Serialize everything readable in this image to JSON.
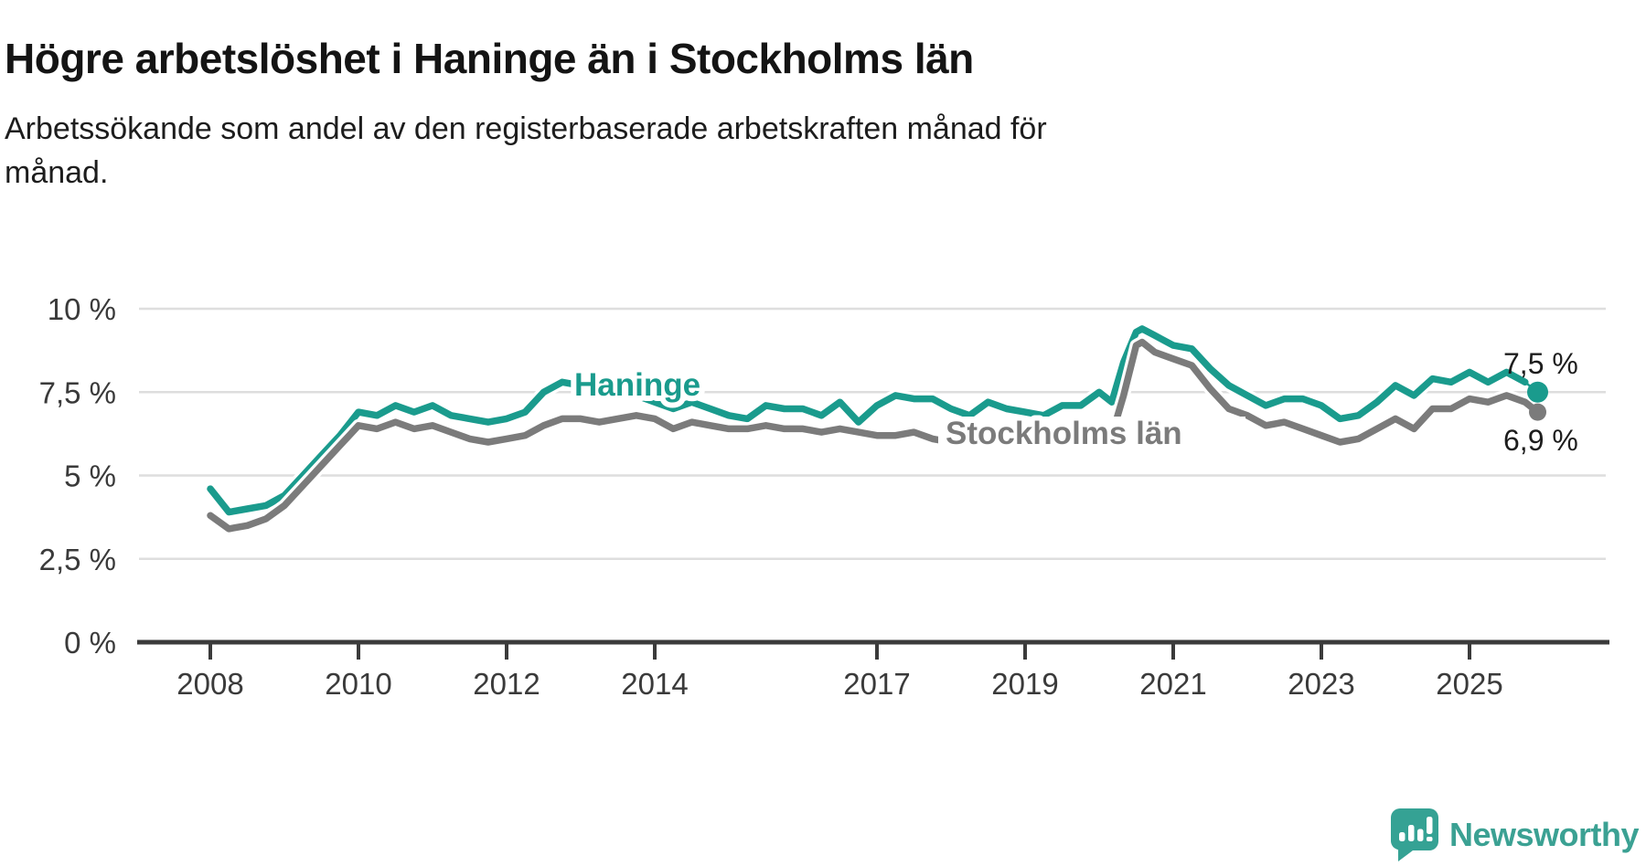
{
  "header": {
    "title": "Högre arbetslöshet i Haninge än i Stockholms län",
    "subtitle_line1": "Arbetssökande som andel av den registerbaserade arbetskraften månad för",
    "subtitle_line2": "månad."
  },
  "chart_data": {
    "type": "line",
    "title": "Högre arbetslöshet i Haninge än i Stockholms län",
    "subtitle": "Arbetssökande som andel av den registerbaserade arbetskraften månad för månad.",
    "unit": "%",
    "cadence": "monthly series 2008–2025, values read from chart at ~quarterly resolution",
    "grid": "horizontal gridlines only",
    "legend_position": "inline labels on lines",
    "x_axis": {
      "range_years": [
        2007.1,
        2026.9
      ],
      "ticks": [
        {
          "label": "2008",
          "value": 2008
        },
        {
          "label": "2010",
          "value": 2010
        },
        {
          "label": "2012",
          "value": 2012
        },
        {
          "label": "2014",
          "value": 2014
        },
        {
          "label": "2017",
          "value": 2017
        },
        {
          "label": "2019",
          "value": 2019
        },
        {
          "label": "2021",
          "value": 2021
        },
        {
          "label": "2023",
          "value": 2023
        },
        {
          "label": "2025",
          "value": 2025
        }
      ]
    },
    "y_axis": {
      "range": [
        0,
        10
      ],
      "ticks": [
        {
          "label": "0 %",
          "value": 0
        },
        {
          "label": "2,5 %",
          "value": 2.5
        },
        {
          "label": "5 %",
          "value": 5
        },
        {
          "label": "7,5 %",
          "value": 7.5
        },
        {
          "label": "10 %",
          "value": 10
        }
      ]
    },
    "series": [
      {
        "id": "haninge",
        "name": "Haninge",
        "color": "#1a9b8d",
        "end_label": "7,5 %",
        "end_value": 7.5,
        "leader_to_end": true,
        "points": [
          [
            2008.0,
            4.6
          ],
          [
            2008.25,
            3.9
          ],
          [
            2008.5,
            4.0
          ],
          [
            2008.75,
            4.1
          ],
          [
            2009.0,
            4.4
          ],
          [
            2009.25,
            5.0
          ],
          [
            2009.5,
            5.6
          ],
          [
            2009.75,
            6.2
          ],
          [
            2010.0,
            6.9
          ],
          [
            2010.25,
            6.8
          ],
          [
            2010.5,
            7.1
          ],
          [
            2010.75,
            6.9
          ],
          [
            2011.0,
            7.1
          ],
          [
            2011.25,
            6.8
          ],
          [
            2011.5,
            6.7
          ],
          [
            2011.75,
            6.6
          ],
          [
            2012.0,
            6.7
          ],
          [
            2012.25,
            6.9
          ],
          [
            2012.5,
            7.5
          ],
          [
            2012.75,
            7.8
          ],
          [
            2013.0,
            7.7
          ],
          [
            2013.25,
            7.6
          ],
          [
            2013.5,
            7.7
          ],
          [
            2013.75,
            7.4
          ],
          [
            2014.0,
            7.2
          ],
          [
            2014.25,
            7.0
          ],
          [
            2014.5,
            7.2
          ],
          [
            2014.75,
            7.0
          ],
          [
            2015.0,
            6.8
          ],
          [
            2015.25,
            6.7
          ],
          [
            2015.5,
            7.1
          ],
          [
            2015.75,
            7.0
          ],
          [
            2016.0,
            7.0
          ],
          [
            2016.25,
            6.8
          ],
          [
            2016.5,
            7.2
          ],
          [
            2016.75,
            6.6
          ],
          [
            2017.0,
            7.1
          ],
          [
            2017.25,
            7.4
          ],
          [
            2017.5,
            7.3
          ],
          [
            2017.75,
            7.3
          ],
          [
            2018.0,
            7.0
          ],
          [
            2018.25,
            6.8
          ],
          [
            2018.5,
            7.2
          ],
          [
            2018.75,
            7.0
          ],
          [
            2019.0,
            6.9
          ],
          [
            2019.25,
            6.8
          ],
          [
            2019.5,
            7.1
          ],
          [
            2019.75,
            7.1
          ],
          [
            2020.0,
            7.5
          ],
          [
            2020.17,
            7.2
          ],
          [
            2020.33,
            8.4
          ],
          [
            2020.5,
            9.3
          ],
          [
            2020.58,
            9.4
          ],
          [
            2020.75,
            9.2
          ],
          [
            2021.0,
            8.9
          ],
          [
            2021.25,
            8.8
          ],
          [
            2021.5,
            8.2
          ],
          [
            2021.75,
            7.7
          ],
          [
            2022.0,
            7.4
          ],
          [
            2022.25,
            7.1
          ],
          [
            2022.5,
            7.3
          ],
          [
            2022.75,
            7.3
          ],
          [
            2023.0,
            7.1
          ],
          [
            2023.25,
            6.7
          ],
          [
            2023.5,
            6.8
          ],
          [
            2023.75,
            7.2
          ],
          [
            2024.0,
            7.7
          ],
          [
            2024.25,
            7.4
          ],
          [
            2024.5,
            7.9
          ],
          [
            2024.75,
            7.8
          ],
          [
            2025.0,
            8.1
          ],
          [
            2025.25,
            7.8
          ],
          [
            2025.5,
            8.1
          ],
          [
            2025.75,
            7.8
          ],
          [
            2025.92,
            7.5
          ]
        ]
      },
      {
        "id": "stockholms-lan",
        "name": "Stockholms län",
        "color": "#7b7b7b",
        "end_label": "6,9 %",
        "end_value": 6.9,
        "leader_to_end": false,
        "points": [
          [
            2008.0,
            3.8
          ],
          [
            2008.25,
            3.4
          ],
          [
            2008.5,
            3.5
          ],
          [
            2008.75,
            3.7
          ],
          [
            2009.0,
            4.1
          ],
          [
            2009.25,
            4.7
          ],
          [
            2009.5,
            5.3
          ],
          [
            2009.75,
            5.9
          ],
          [
            2010.0,
            6.5
          ],
          [
            2010.25,
            6.4
          ],
          [
            2010.5,
            6.6
          ],
          [
            2010.75,
            6.4
          ],
          [
            2011.0,
            6.5
          ],
          [
            2011.25,
            6.3
          ],
          [
            2011.5,
            6.1
          ],
          [
            2011.75,
            6.0
          ],
          [
            2012.0,
            6.1
          ],
          [
            2012.25,
            6.2
          ],
          [
            2012.5,
            6.5
          ],
          [
            2012.75,
            6.7
          ],
          [
            2013.0,
            6.7
          ],
          [
            2013.25,
            6.6
          ],
          [
            2013.5,
            6.7
          ],
          [
            2013.75,
            6.8
          ],
          [
            2014.0,
            6.7
          ],
          [
            2014.25,
            6.4
          ],
          [
            2014.5,
            6.6
          ],
          [
            2014.75,
            6.5
          ],
          [
            2015.0,
            6.4
          ],
          [
            2015.25,
            6.4
          ],
          [
            2015.5,
            6.5
          ],
          [
            2015.75,
            6.4
          ],
          [
            2016.0,
            6.4
          ],
          [
            2016.25,
            6.3
          ],
          [
            2016.5,
            6.4
          ],
          [
            2016.75,
            6.3
          ],
          [
            2017.0,
            6.2
          ],
          [
            2017.25,
            6.2
          ],
          [
            2017.5,
            6.3
          ],
          [
            2017.75,
            6.1
          ],
          [
            2018.0,
            6.0
          ],
          [
            2018.25,
            6.0
          ],
          [
            2018.5,
            6.2
          ],
          [
            2018.75,
            6.1
          ],
          [
            2019.0,
            6.2
          ],
          [
            2019.25,
            6.2
          ],
          [
            2019.5,
            6.4
          ],
          [
            2019.75,
            6.3
          ],
          [
            2020.0,
            6.3
          ],
          [
            2020.17,
            6.2
          ],
          [
            2020.33,
            7.4
          ],
          [
            2020.5,
            8.9
          ],
          [
            2020.58,
            9.0
          ],
          [
            2020.75,
            8.7
          ],
          [
            2021.0,
            8.5
          ],
          [
            2021.25,
            8.3
          ],
          [
            2021.5,
            7.6
          ],
          [
            2021.75,
            7.0
          ],
          [
            2022.0,
            6.8
          ],
          [
            2022.25,
            6.5
          ],
          [
            2022.5,
            6.6
          ],
          [
            2022.75,
            6.4
          ],
          [
            2023.0,
            6.2
          ],
          [
            2023.25,
            6.0
          ],
          [
            2023.5,
            6.1
          ],
          [
            2023.75,
            6.4
          ],
          [
            2024.0,
            6.7
          ],
          [
            2024.25,
            6.4
          ],
          [
            2024.5,
            7.0
          ],
          [
            2024.75,
            7.0
          ],
          [
            2025.0,
            7.3
          ],
          [
            2025.25,
            7.2
          ],
          [
            2025.5,
            7.4
          ],
          [
            2025.75,
            7.2
          ],
          [
            2025.92,
            6.9
          ]
        ]
      }
    ]
  },
  "branding": {
    "name": "Newsworthy",
    "icon": "newsworthy-speech-bubble-bar-chart-icon",
    "text_color": "#3ba193",
    "icon_color": "#35a294"
  }
}
